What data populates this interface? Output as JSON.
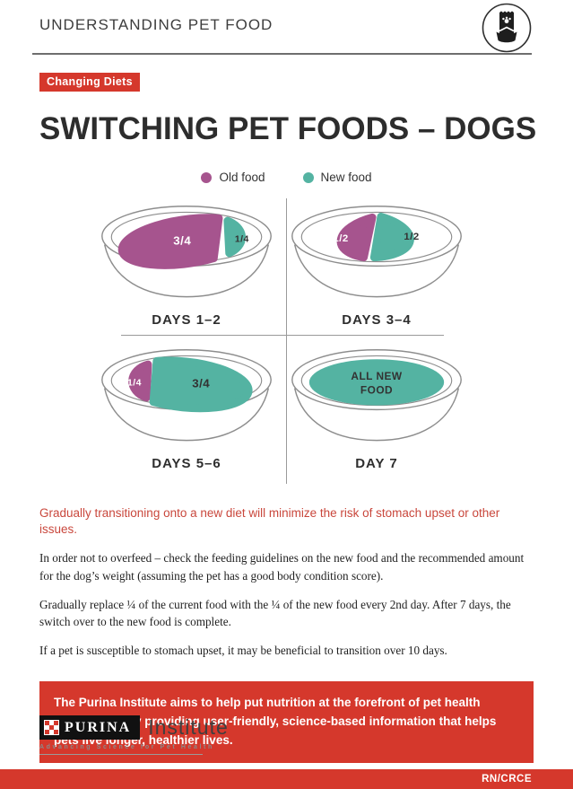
{
  "header": {
    "title": "UNDERSTANDING PET FOOD",
    "icon": "pet-food-bag-and-bowl-icon"
  },
  "badge": "Changing Diets",
  "title": "SWITCHING PET FOODS – DOGS",
  "colors": {
    "old_food": "#A6548E",
    "new_food": "#54B3A2",
    "accent_red": "#D5382C",
    "text_red": "#C9473C",
    "label_on_old": "#FFFFFF",
    "label_on_new": "#333333",
    "bowl_outline": "#8d8d8d"
  },
  "legend": {
    "old": {
      "label": "Old food"
    },
    "new": {
      "label": "New food"
    }
  },
  "bowls": [
    {
      "label": "DAYS 1–2",
      "variant": "three-one",
      "portions": [
        {
          "food": "old",
          "value": "3/4"
        },
        {
          "food": "new",
          "value": "1/4"
        }
      ]
    },
    {
      "label": "DAYS 3–4",
      "variant": "half-half",
      "portions": [
        {
          "food": "old",
          "value": "1/2"
        },
        {
          "food": "new",
          "value": "1/2"
        }
      ]
    },
    {
      "label": "DAYS 5–6",
      "variant": "one-three",
      "portions": [
        {
          "food": "old",
          "value": "1/4"
        },
        {
          "food": "new",
          "value": "3/4"
        }
      ]
    },
    {
      "label": "DAY 7",
      "variant": "all-new",
      "portions": [
        {
          "food": "new",
          "value": "ALL NEW FOOD"
        }
      ]
    }
  ],
  "lead": "Gradually transitioning onto a new diet will minimize the risk of stomach upset or other issues.",
  "paragraphs": [
    "In order not to overfeed – check the feeding guidelines on the new food and the recommended amount for the dog’s weight (assuming the pet has a good body condition score).",
    "Gradually replace ¼ of the current food with the ¼ of the new food every 2nd day. After 7 days, the switch over to the new food is complete.",
    "If a pet is susceptible to stomach upset, it may be beneficial to transition over 10 days."
  ],
  "callout": "The Purina Institute aims to help put nutrition at the forefront of pet health discussions by providing user-friendly, science-based information that helps pets live longer, healthier lives.",
  "footer": {
    "brand": "PURINA",
    "brand_suffix": "Institute",
    "tagline": "Advancing Science for Pet Health",
    "code": "RN/CRCE"
  }
}
